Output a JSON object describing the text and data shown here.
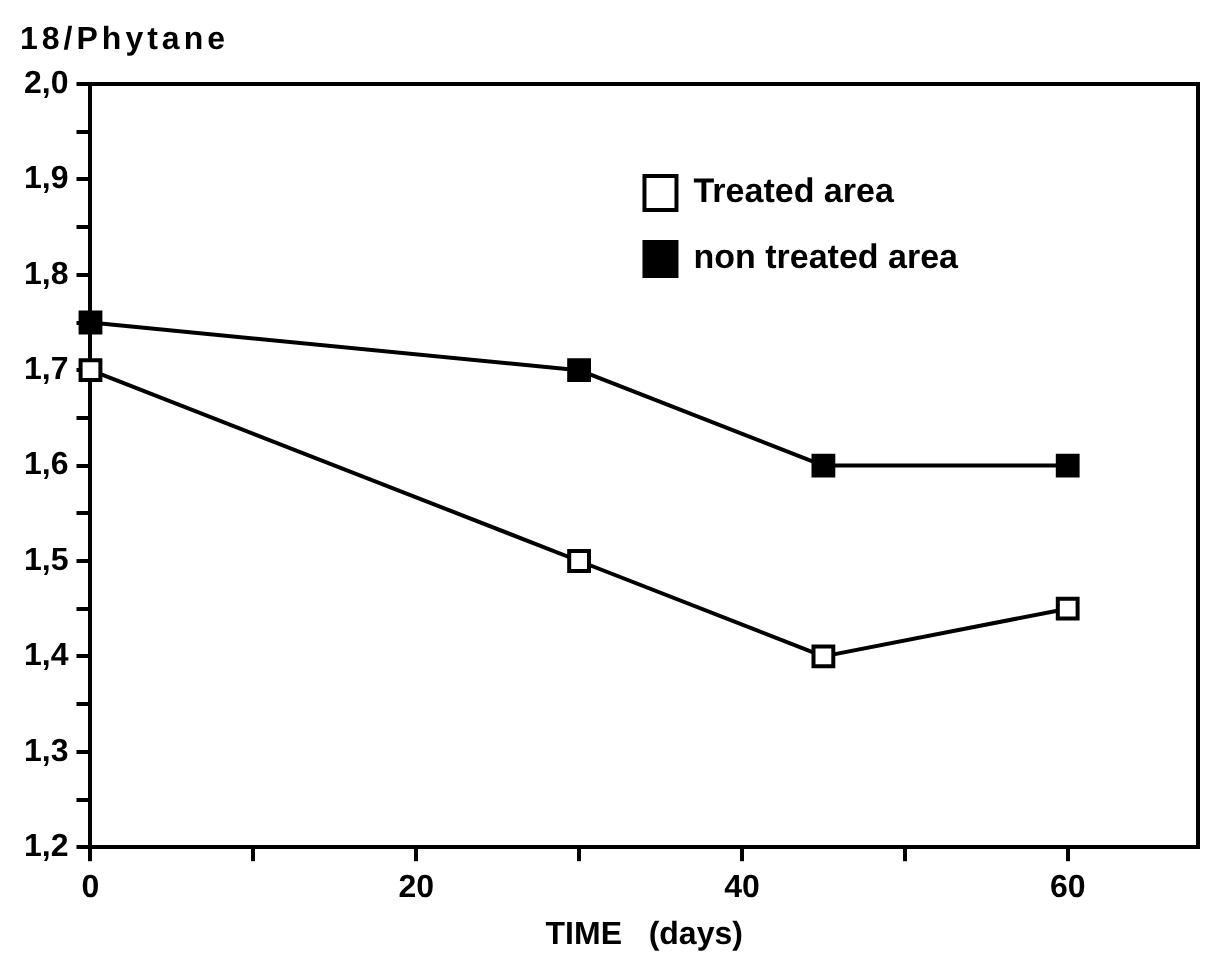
{
  "chart_data": {
    "type": "line",
    "ylabel": "18/Phytane",
    "xlabel": "TIME   (days)",
    "x": [
      0,
      30,
      45,
      60
    ],
    "series": [
      {
        "name": "Treated area",
        "color": "#000000",
        "values": [
          1.7,
          1.5,
          1.4,
          1.45
        ]
      },
      {
        "name": "non treated area",
        "color": "#000000",
        "values": [
          1.75,
          1.7,
          1.6,
          1.6
        ]
      }
    ],
    "xlim": [
      0,
      68
    ],
    "xticks": [
      0,
      {
        "value": 10,
        "label": null
      },
      20,
      {
        "value": 30,
        "label": null
      },
      40,
      {
        "value": 50,
        "label": null
      },
      60
    ],
    "ylim": [
      1.2,
      2.0
    ],
    "yticks": [
      {
        "value": 1.2,
        "label": "1,2"
      },
      {
        "value": 1.25,
        "label": null
      },
      {
        "value": 1.3,
        "label": "1,3"
      },
      {
        "value": 1.35,
        "label": null
      },
      {
        "value": 1.4,
        "label": "1,4"
      },
      {
        "value": 1.45,
        "label": null
      },
      {
        "value": 1.5,
        "label": "1,5"
      },
      {
        "value": 1.55,
        "label": null
      },
      {
        "value": 1.6,
        "label": "1,6"
      },
      {
        "value": 1.65,
        "label": null
      },
      {
        "value": 1.7,
        "label": "1,7"
      },
      {
        "value": 1.75,
        "label": null
      },
      {
        "value": 1.8,
        "label": "1,8"
      },
      {
        "value": 1.85,
        "label": null
      },
      {
        "value": 1.9,
        "label": "1,9"
      },
      {
        "value": 1.95,
        "label": null
      },
      {
        "value": 2.0,
        "label": "2,0"
      }
    ],
    "legend": "top right",
    "marker": "square",
    "line_style": "solid",
    "grid": false
  }
}
